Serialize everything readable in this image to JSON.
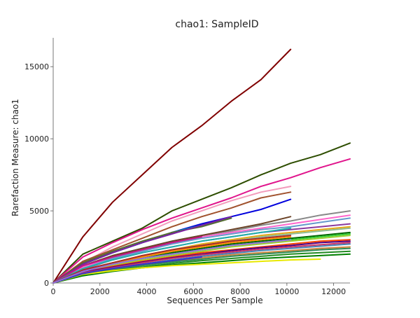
{
  "chart_data": {
    "type": "line",
    "title": "chao1: SampleID",
    "xlabel": "Sequences Per Sample",
    "ylabel": "Rarefaction Measure: chao1",
    "xlim": [
      0,
      12700
    ],
    "ylim": [
      0,
      17000
    ],
    "xticks": [
      0,
      2000,
      4000,
      6000,
      8000,
      10000,
      12000
    ],
    "yticks": [
      0,
      5000,
      10000,
      15000
    ],
    "grid": false,
    "legend": "none",
    "series": [
      {
        "color": "#800000",
        "x": [
          0,
          1270,
          2540,
          3810,
          5080,
          6350,
          7620,
          8890,
          10160
        ],
        "y": [
          0,
          3200,
          5600,
          7500,
          9400,
          10900,
          12600,
          14100,
          16200
        ]
      },
      {
        "color": "#2d4d00",
        "x": [
          0,
          1270,
          2540,
          3810,
          5080,
          6350,
          7620,
          8890,
          10160,
          11430,
          12700
        ],
        "y": [
          0,
          2000,
          2900,
          3800,
          5000,
          5800,
          6600,
          7500,
          8300,
          8900,
          9700
        ]
      },
      {
        "color": "#e0148c",
        "x": [
          0,
          1270,
          2540,
          3810,
          5080,
          6350,
          7620,
          8890,
          10160,
          11430,
          12700
        ],
        "y": [
          0,
          1800,
          2800,
          3700,
          4500,
          5200,
          5900,
          6700,
          7300,
          8000,
          8600
        ]
      },
      {
        "color": "#f29bbb",
        "x": [
          0,
          1270,
          2540,
          3810,
          5080,
          6350,
          7620,
          8890,
          10160
        ],
        "y": [
          0,
          1400,
          2500,
          3400,
          4300,
          5000,
          5700,
          6300,
          6700
        ]
      },
      {
        "color": "#a0522d",
        "x": [
          0,
          1270,
          2540,
          3810,
          5080,
          6350,
          7620,
          8890,
          10160
        ],
        "y": [
          0,
          1500,
          2300,
          3100,
          3900,
          4600,
          5200,
          5900,
          6300
        ]
      },
      {
        "color": "#0000dd",
        "x": [
          0,
          1270,
          2540,
          3810,
          5080,
          6350,
          7620,
          8890,
          10160
        ],
        "y": [
          0,
          1300,
          2100,
          2800,
          3500,
          4100,
          4600,
          5100,
          5800
        ]
      },
      {
        "color": "#888888",
        "x": [
          0,
          1270,
          2540,
          3810,
          5080,
          6350,
          7620,
          8890,
          10160,
          11430,
          12700
        ],
        "y": [
          0,
          1100,
          1800,
          2400,
          2900,
          3300,
          3600,
          4000,
          4300,
          4700,
          5000
        ]
      },
      {
        "color": "#ff66cc",
        "x": [
          0,
          1270,
          2540,
          3810,
          5080,
          6350,
          7620,
          8890,
          10160,
          11430,
          12700
        ],
        "y": [
          0,
          1100,
          1700,
          2300,
          2800,
          3200,
          3500,
          3800,
          4100,
          4400,
          4700
        ]
      },
      {
        "color": "#6699cc",
        "x": [
          0,
          1270,
          2540,
          3810,
          5080,
          6350,
          7620,
          8890,
          10160,
          11430,
          12700
        ],
        "y": [
          0,
          1000,
          1700,
          2200,
          2700,
          3100,
          3400,
          3700,
          3900,
          4200,
          4500
        ]
      },
      {
        "color": "#6b4226",
        "x": [
          0,
          1270,
          2540,
          3810,
          5080,
          6350,
          7620,
          8890,
          10160
        ],
        "y": [
          0,
          1200,
          1900,
          2400,
          2900,
          3300,
          3700,
          4100,
          4600
        ]
      },
      {
        "color": "#8b3a9e",
        "x": [
          0,
          1270,
          2540,
          3810,
          5080,
          6350,
          7620,
          8890,
          10160,
          11430,
          12700
        ],
        "y": [
          0,
          950,
          1600,
          2100,
          2500,
          2900,
          3200,
          3500,
          3700,
          3900,
          4100
        ]
      },
      {
        "color": "#00aaaa",
        "x": [
          0,
          1270,
          2540,
          3810,
          5080,
          6350,
          7620
        ],
        "y": [
          0,
          1300,
          2100,
          2800,
          3500,
          4000,
          4500
        ]
      },
      {
        "color": "#556b2f",
        "x": [
          0,
          1270,
          2540,
          3810,
          5080,
          6350,
          7620
        ],
        "y": [
          0,
          1400,
          2200,
          2900,
          3500,
          3900,
          4500
        ]
      },
      {
        "color": "#7a1fa2",
        "x": [
          0,
          1270,
          2540,
          3810,
          5080,
          6350,
          7620
        ],
        "y": [
          0,
          1300,
          2100,
          2800,
          3400,
          4000,
          4600
        ]
      },
      {
        "color": "#e6a817",
        "x": [
          0,
          1270,
          2540,
          3810,
          5080,
          6350,
          7620,
          8890,
          10160,
          11430,
          12700
        ],
        "y": [
          0,
          900,
          1400,
          1900,
          2300,
          2700,
          3000,
          3300,
          3500,
          3700,
          3900
        ]
      },
      {
        "color": "#8fbc8f",
        "x": [
          0,
          1270,
          2540,
          3810,
          5080,
          6350,
          7620,
          8890,
          10160,
          11430,
          12700
        ],
        "y": [
          0,
          900,
          1400,
          1800,
          2200,
          2600,
          2900,
          3200,
          3400,
          3600,
          3800
        ]
      },
      {
        "color": "#006400",
        "x": [
          0,
          1270,
          2540,
          3810,
          5080,
          6350,
          7620,
          8890,
          10160,
          11430,
          12700
        ],
        "y": [
          0,
          850,
          1300,
          1700,
          2100,
          2400,
          2700,
          2900,
          3100,
          3300,
          3500
        ]
      },
      {
        "color": "#32cd32",
        "x": [
          0,
          1270,
          2540,
          3810,
          5080,
          6350,
          7620,
          8890,
          10160,
          11430,
          12700
        ],
        "y": [
          0,
          800,
          1300,
          1700,
          2000,
          2300,
          2600,
          2800,
          3000,
          3200,
          3400
        ]
      },
      {
        "color": "#9acd32",
        "x": [
          0,
          1270,
          2540,
          3810,
          5080,
          6350,
          7620,
          8890,
          10160,
          11430,
          12700
        ],
        "y": [
          0,
          800,
          1200,
          1600,
          1900,
          2200,
          2500,
          2700,
          2900,
          3100,
          3300
        ]
      },
      {
        "color": "#ff4500",
        "x": [
          0,
          1270,
          2540,
          3810,
          5080,
          6350,
          7620,
          8890,
          10160,
          11430,
          12700
        ],
        "y": [
          0,
          750,
          1150,
          1500,
          1800,
          2100,
          2300,
          2500,
          2700,
          2900,
          3000
        ]
      },
      {
        "color": "#4b0082",
        "x": [
          0,
          1270,
          2540,
          3810,
          5080,
          6350,
          7620,
          8890,
          10160,
          11430,
          12700
        ],
        "y": [
          0,
          750,
          1100,
          1450,
          1750,
          2000,
          2250,
          2450,
          2600,
          2800,
          2900
        ]
      },
      {
        "color": "#cc3366",
        "x": [
          0,
          1270,
          2540,
          3810,
          5080,
          6350,
          7620,
          8890,
          10160,
          11430,
          12700
        ],
        "y": [
          0,
          700,
          1050,
          1400,
          1700,
          1950,
          2150,
          2350,
          2500,
          2650,
          2800
        ]
      },
      {
        "color": "#4682b4",
        "x": [
          0,
          1270,
          2540,
          3810,
          5080,
          6350,
          7620,
          8890,
          10160,
          11430,
          12700
        ],
        "y": [
          0,
          650,
          1000,
          1300,
          1600,
          1850,
          2050,
          2250,
          2400,
          2550,
          2700
        ]
      },
      {
        "color": "#cd853f",
        "x": [
          0,
          1270,
          2540,
          3810,
          5080,
          6350,
          7620,
          8890,
          10160,
          11430,
          12700
        ],
        "y": [
          0,
          650,
          950,
          1250,
          1500,
          1750,
          1950,
          2100,
          2250,
          2400,
          2500
        ]
      },
      {
        "color": "#2e8b57",
        "x": [
          0,
          1270,
          2540,
          3810,
          5080,
          6350,
          7620,
          8890,
          10160,
          11430,
          12700
        ],
        "y": [
          0,
          600,
          900,
          1200,
          1450,
          1650,
          1850,
          2000,
          2150,
          2300,
          2400
        ]
      },
      {
        "color": "#228b22",
        "x": [
          0,
          1270,
          2540,
          3810,
          5080,
          6350,
          7620,
          8890,
          10160,
          11430,
          12700
        ],
        "y": [
          0,
          550,
          850,
          1100,
          1350,
          1550,
          1700,
          1850,
          2000,
          2100,
          2200
        ]
      },
      {
        "color": "#008000",
        "x": [
          0,
          1270,
          2540,
          3810,
          5080,
          6350,
          7620,
          8890,
          10160,
          11430,
          12700
        ],
        "y": [
          0,
          500,
          800,
          1050,
          1250,
          1400,
          1550,
          1700,
          1800,
          1900,
          2000
        ]
      },
      {
        "color": "#e8e800",
        "x": [
          0,
          1270,
          2540,
          3810,
          5080,
          6350,
          7620,
          8890,
          10160,
          11430
        ],
        "y": [
          0,
          600,
          850,
          1050,
          1200,
          1300,
          1400,
          1500,
          1600,
          1650
        ]
      },
      {
        "color": "#c71585",
        "x": [
          0,
          1270,
          2540,
          3810,
          5080,
          6350
        ],
        "y": [
          0,
          1200,
          1800,
          2300,
          2800,
          3200
        ]
      },
      {
        "color": "#3333cc",
        "x": [
          0,
          1270,
          2540,
          3810,
          5080,
          6350
        ],
        "y": [
          0,
          650,
          1000,
          1300,
          1550,
          1800
        ]
      },
      {
        "color": "#ff8c00",
        "x": [
          0,
          1270,
          2540,
          3810,
          5080,
          6350,
          7620,
          8890,
          10160
        ],
        "y": [
          0,
          900,
          1400,
          1800,
          2200,
          2500,
          2800,
          3000,
          3200
        ]
      },
      {
        "color": "#20b2aa",
        "x": [
          0,
          1270,
          2540,
          3810,
          5080,
          6350,
          7620,
          8890,
          10160
        ],
        "y": [
          0,
          1000,
          1600,
          2100,
          2500,
          2900,
          3200,
          3500,
          3800
        ]
      },
      {
        "color": "#a52a2a",
        "x": [
          0,
          1270,
          2540,
          3810,
          5080,
          6350,
          7620,
          8890,
          10160
        ],
        "y": [
          0,
          900,
          1400,
          1900,
          2300,
          2600,
          2900,
          3100,
          3300
        ]
      },
      {
        "color": "#9370db",
        "x": [
          0,
          1270,
          2540,
          3810,
          5080,
          6350,
          7620,
          8890,
          10160
        ],
        "y": [
          0,
          800,
          1300,
          1700,
          2000,
          2300,
          2600,
          2800,
          3000
        ]
      }
    ]
  }
}
